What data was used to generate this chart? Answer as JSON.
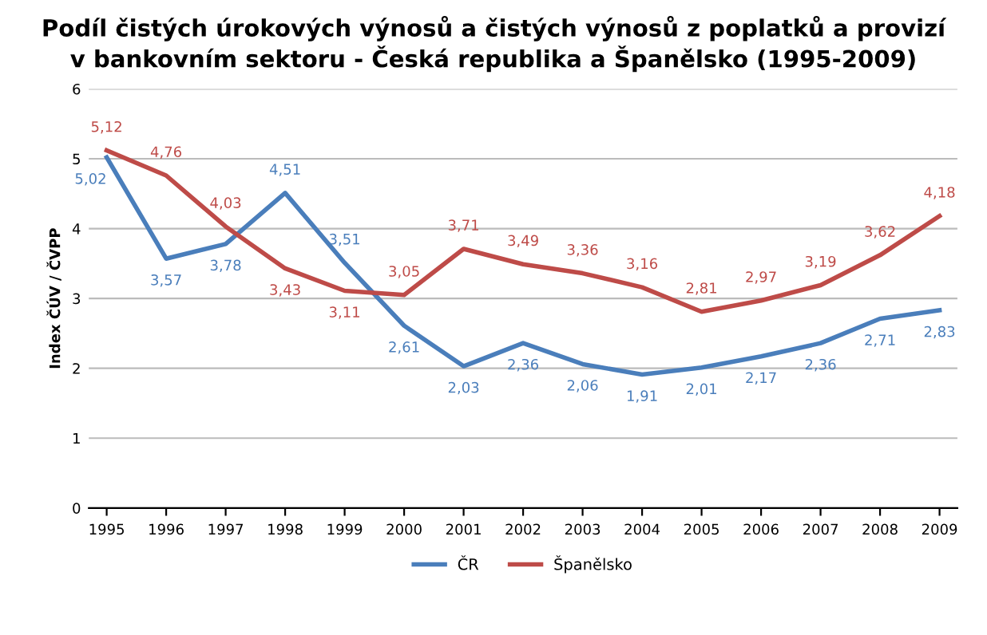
{
  "chart_data": {
    "type": "line",
    "title": "Podíl čistých úrokových výnosů a čistých výnosů z poplatků a provizí\nv bankovním sektoru - Česká republika a Španělsko (1995-2009)",
    "ylabel": "Index ČÚV / ČVPP",
    "categories": [
      "1995",
      "1996",
      "1997",
      "1998",
      "1999",
      "2000",
      "2001",
      "2002",
      "2003",
      "2004",
      "2005",
      "2006",
      "2007",
      "2008",
      "2009"
    ],
    "series": [
      {
        "name": "ČR",
        "color": "#4a7ebb",
        "values": [
          5.02,
          3.57,
          3.78,
          4.51,
          3.51,
          2.61,
          2.03,
          2.36,
          2.06,
          1.91,
          2.01,
          2.17,
          2.36,
          2.71,
          2.83
        ],
        "value_labels": [
          "5,02",
          "3,57",
          "3,78",
          "4,51",
          "3,51",
          "2,61",
          "2,03",
          "2,36",
          "2,06",
          "1,91",
          "2,01",
          "2,17",
          "2,36",
          "2,71",
          "2,83"
        ]
      },
      {
        "name": "Španělsko",
        "color": "#be4b48",
        "values": [
          5.12,
          4.76,
          4.03,
          3.43,
          3.11,
          3.05,
          3.71,
          3.49,
          3.36,
          3.16,
          2.81,
          2.97,
          3.19,
          3.62,
          4.18
        ],
        "value_labels": [
          "5,12",
          "4,76",
          "4,03",
          "3,43",
          "3,11",
          "3,05",
          "3,71",
          "3,49",
          "3,36",
          "3,16",
          "2,81",
          "2,97",
          "3,19",
          "3,62",
          "4,18"
        ]
      }
    ],
    "ylim": [
      0,
      6
    ],
    "yticks": [
      0,
      1,
      2,
      3,
      4,
      5,
      6
    ],
    "grid": "y",
    "legend": "bottom",
    "marker": "none",
    "line_style": "solid"
  }
}
